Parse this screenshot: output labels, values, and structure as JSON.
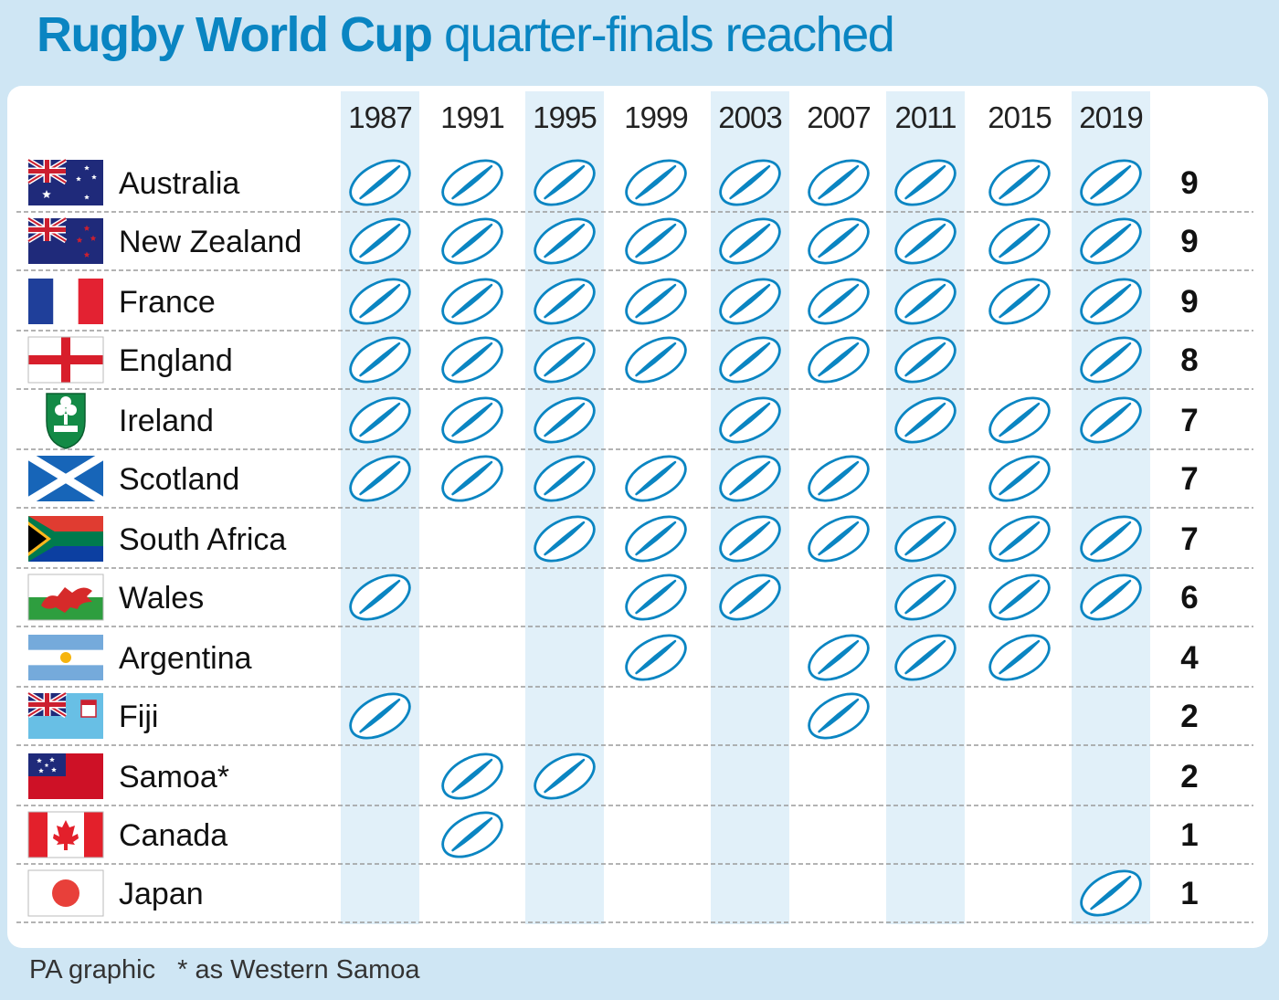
{
  "title": {
    "bold": "Rugby World Cup",
    "regular": "quarter-finals reached"
  },
  "footer": {
    "credit": "PA graphic",
    "note": "* as Western Samoa"
  },
  "colors": {
    "accent": "#0a85c2",
    "shaded_column": "#e1f0f9",
    "background": "#cfe6f4",
    "ball_stroke": "#0a85c2",
    "divider": "#9a9a9a"
  },
  "chart_data": {
    "type": "table",
    "categories": [
      "1987",
      "1991",
      "1995",
      "1999",
      "2003",
      "2007",
      "2011",
      "2015",
      "2019"
    ],
    "rows": [
      {
        "team": "Australia",
        "flag": "australia-flag",
        "reached": [
          1,
          1,
          1,
          1,
          1,
          1,
          1,
          1,
          1
        ],
        "total": "9"
      },
      {
        "team": "New Zealand",
        "flag": "new-zealand-flag",
        "reached": [
          1,
          1,
          1,
          1,
          1,
          1,
          1,
          1,
          1
        ],
        "total": "9"
      },
      {
        "team": "France",
        "flag": "france-flag",
        "reached": [
          1,
          1,
          1,
          1,
          1,
          1,
          1,
          1,
          1
        ],
        "total": "9"
      },
      {
        "team": "England",
        "flag": "england-flag",
        "reached": [
          1,
          1,
          1,
          1,
          1,
          1,
          1,
          0,
          1
        ],
        "total": "8"
      },
      {
        "team": "Ireland",
        "flag": "irfu-crest",
        "reached": [
          1,
          1,
          1,
          0,
          1,
          0,
          1,
          1,
          1
        ],
        "total": "7"
      },
      {
        "team": "Scotland",
        "flag": "scotland-flag",
        "reached": [
          1,
          1,
          1,
          1,
          1,
          1,
          0,
          1,
          0
        ],
        "total": "7"
      },
      {
        "team": "South Africa",
        "flag": "south-africa-flag",
        "reached": [
          0,
          0,
          1,
          1,
          1,
          1,
          1,
          1,
          1
        ],
        "total": "7"
      },
      {
        "team": "Wales",
        "flag": "wales-flag",
        "reached": [
          1,
          0,
          0,
          1,
          1,
          0,
          1,
          1,
          1
        ],
        "total": "6"
      },
      {
        "team": "Argentina",
        "flag": "argentina-flag",
        "reached": [
          0,
          0,
          0,
          1,
          0,
          1,
          1,
          1,
          0
        ],
        "total": "4"
      },
      {
        "team": "Fiji",
        "flag": "fiji-flag",
        "reached": [
          1,
          0,
          0,
          0,
          0,
          1,
          0,
          0,
          0
        ],
        "total": "2"
      },
      {
        "team": "Samoa*",
        "flag": "samoa-flag",
        "reached": [
          0,
          1,
          1,
          0,
          0,
          0,
          0,
          0,
          0
        ],
        "total": "2"
      },
      {
        "team": "Canada",
        "flag": "canada-flag",
        "reached": [
          0,
          1,
          0,
          0,
          0,
          0,
          0,
          0,
          0
        ],
        "total": "1"
      },
      {
        "team": "Japan",
        "flag": "japan-flag",
        "reached": [
          0,
          0,
          0,
          0,
          0,
          0,
          0,
          0,
          1
        ],
        "total": "1"
      }
    ],
    "marker_icon": "rugby-ball-icon",
    "shaded_columns": [
      "1987",
      "1995",
      "2003",
      "2011",
      "2019"
    ]
  }
}
